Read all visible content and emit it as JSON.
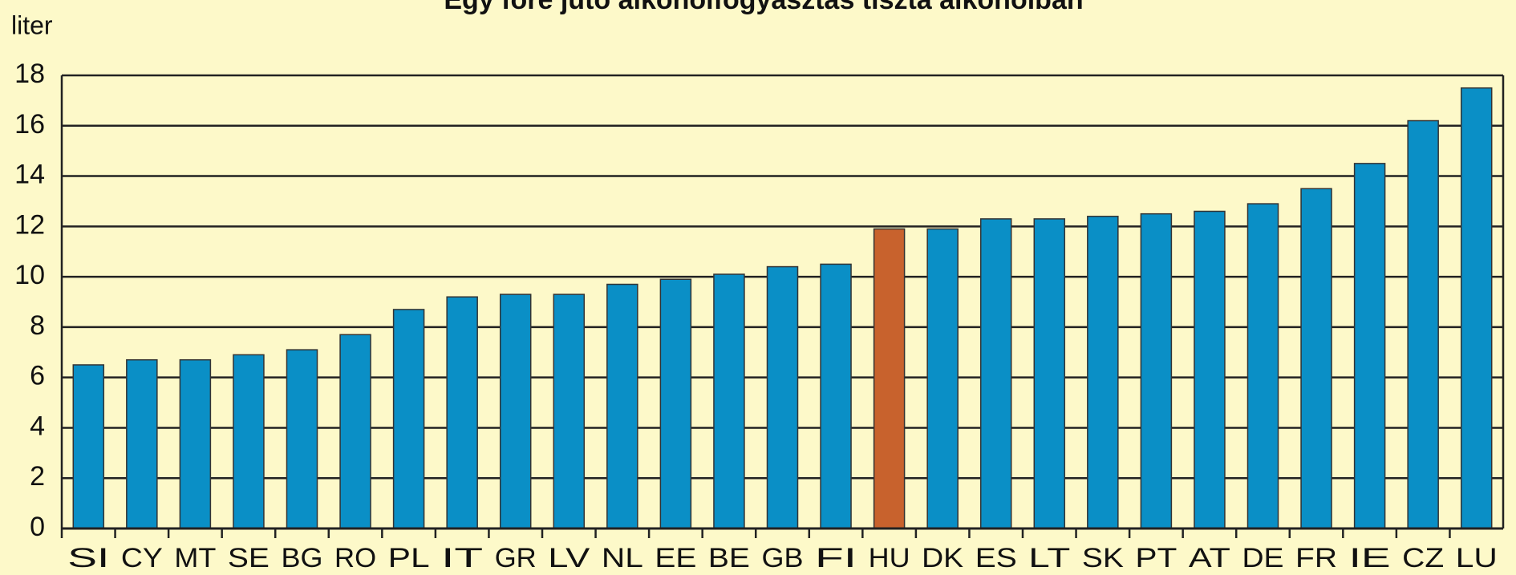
{
  "chart_data": {
    "type": "bar",
    "title": "Egy főre jutó alkoholfogyasztás tiszta alkoholban",
    "y_label": "liter",
    "categories": [
      "SI",
      "CY",
      "MT",
      "SE",
      "BG",
      "RO",
      "PL",
      "IT",
      "GR",
      "LV",
      "NL",
      "EE",
      "BE",
      "GB",
      "FI",
      "HU",
      "DK",
      "ES",
      "LT",
      "SK",
      "PT",
      "AT",
      "DE",
      "FR",
      "IE",
      "CZ",
      "LU"
    ],
    "values": [
      6.5,
      6.7,
      6.7,
      6.9,
      7.1,
      7.7,
      8.7,
      9.2,
      9.3,
      9.3,
      9.7,
      9.9,
      10.1,
      10.4,
      10.5,
      11.9,
      11.9,
      12.3,
      12.3,
      12.4,
      12.5,
      12.6,
      12.9,
      13.5,
      14.5,
      16.2,
      17.5
    ],
    "colors": [
      "#0a8fc6",
      "#0a8fc6",
      "#0a8fc6",
      "#0a8fc6",
      "#0a8fc6",
      "#0a8fc6",
      "#0a8fc6",
      "#0a8fc6",
      "#0a8fc6",
      "#0a8fc6",
      "#0a8fc6",
      "#0a8fc6",
      "#0a8fc6",
      "#0a8fc6",
      "#0a8fc6",
      "#c8622d",
      "#0a8fc6",
      "#0a8fc6",
      "#0a8fc6",
      "#0a8fc6",
      "#0a8fc6",
      "#0a8fc6",
      "#0a8fc6",
      "#0a8fc6",
      "#0a8fc6",
      "#0a8fc6",
      "#0a8fc6"
    ],
    "ylim": [
      0,
      18
    ],
    "yticks": [
      0,
      2,
      4,
      6,
      8,
      10,
      12,
      14,
      16,
      18
    ],
    "grid": true
  }
}
